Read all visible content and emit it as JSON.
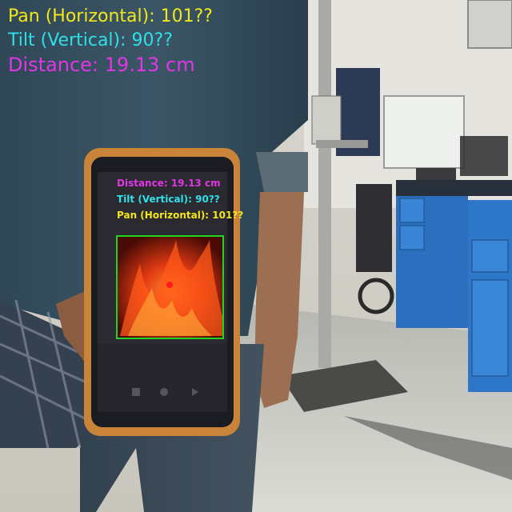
{
  "overlay": {
    "pan_text": "Pan (Horizontal): 101??",
    "tilt_text": "Tilt (Vertical): 90??",
    "distance_text": "Distance: 19.13 cm"
  },
  "phone_overlay": {
    "distance_text": "Distance: 19.13 cm",
    "tilt_text": "Tilt (Vertical): 90??",
    "pan_text": "Pan (Horizontal): 101??"
  },
  "colors": {
    "pan": "#f2e61c",
    "tilt": "#2fe0e8",
    "distance": "#e236e6",
    "bbox": "#1fd51f",
    "target_dot": "#ff1a1a"
  },
  "icons": [
    "fire-image",
    "detection-box",
    "target-dot-icon"
  ]
}
